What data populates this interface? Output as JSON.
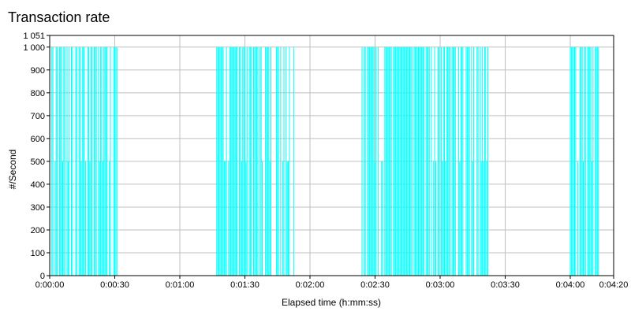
{
  "chart_data": {
    "type": "bar",
    "title": "Transaction rate",
    "xlabel": "Elapsed time (h:mm:ss)",
    "ylabel": "#/Second",
    "xlim": [
      "0:00:00",
      "0:04:20"
    ],
    "ylim": [
      0,
      1051
    ],
    "x_ticks": [
      "0:00:00",
      "0:00:30",
      "0:01:00",
      "0:01:30",
      "0:02:00",
      "0:02:30",
      "0:03:00",
      "0:03:30",
      "0:04:00",
      "0:04:20"
    ],
    "y_ticks": [
      "0",
      "100",
      "200",
      "300",
      "400",
      "500",
      "600",
      "700",
      "800",
      "900",
      "1 000",
      "1 051"
    ],
    "grid": true,
    "series_color": "#00ffff",
    "series": [
      {
        "unit": "h:mm:ss",
        "bursts": [
          {
            "start": "0:00:01",
            "end": "0:00:31",
            "peak": 1000,
            "partial": 500
          },
          {
            "start": "0:01:17",
            "end": "0:01:53",
            "peak": 1000,
            "partial": 500
          },
          {
            "start": "0:02:24",
            "end": "0:03:02",
            "peak": 1000,
            "partial": 500
          },
          {
            "start": "0:03:02",
            "end": "0:03:22",
            "peak": 1000,
            "partial": 500
          },
          {
            "start": "0:04:00",
            "end": "0:04:13",
            "peak": 1000,
            "partial": 500
          }
        ]
      }
    ]
  }
}
